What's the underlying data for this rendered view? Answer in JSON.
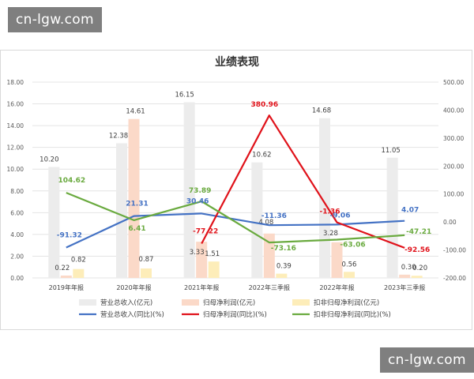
{
  "watermark": {
    "top_left": "cn-lgw.com",
    "bottom_right": "cn-lgw.com"
  },
  "chart_data": {
    "type": "bar",
    "title": "业绩表现",
    "categories": [
      "2019年年报",
      "2020年年报",
      "2021年年报",
      "2022年三季报",
      "2022年年报",
      "2023年三季报"
    ],
    "y_left": {
      "ylim": [
        0,
        18
      ],
      "ticks": [
        "0.00",
        "2.00",
        "4.00",
        "6.00",
        "8.00",
        "10.00",
        "12.00",
        "14.00",
        "16.00",
        "18.00"
      ]
    },
    "y_right": {
      "ylim": [
        -200,
        500
      ],
      "ticks": [
        "-200.00",
        "-100.00",
        "0.00",
        "100.00",
        "200.00",
        "300.00",
        "400.00",
        "500.00"
      ]
    },
    "grid": true,
    "legend_position": "bottom",
    "bar_series": [
      {
        "name": "营业总收入(亿元)",
        "color": "#ececec",
        "values": [
          10.2,
          12.38,
          16.15,
          10.62,
          14.68,
          11.05
        ],
        "labels": [
          "10.20",
          "12.38",
          "16.15",
          "10.62",
          "14.68",
          "11.05"
        ],
        "label_color": "#404040"
      },
      {
        "name": "归母净利润(亿元)",
        "color": "#fbd9c8",
        "values": [
          0.22,
          14.61,
          3.33,
          4.08,
          3.28,
          0.3
        ],
        "labels": [
          "0.22",
          "14.61",
          "3.33",
          "4.08",
          "3.28",
          "0.30"
        ],
        "label_color": "#404040"
      },
      {
        "name": "扣非归母净利润(亿元)",
        "color": "#fdedb9",
        "values": [
          0.82,
          0.87,
          1.51,
          0.39,
          0.56,
          0.2
        ],
        "labels": [
          "0.82",
          "0.87",
          "1.51",
          "0.39",
          "0.56",
          "0.20"
        ],
        "label_color": "#404040"
      }
    ],
    "line_series": [
      {
        "name": "营业总收入(同比)(%)",
        "color": "#4472c4",
        "values": [
          -91.32,
          21.31,
          30.46,
          -11.36,
          -9.06,
          4.07
        ],
        "labels": [
          "-91.32",
          "21.31",
          "30.46",
          "-11.36",
          "-9.06",
          "4.07"
        ]
      },
      {
        "name": "归母净利润(同比)(%)",
        "color": "#e0121a",
        "values": [
          null,
          null,
          -77.22,
          380.96,
          -1.36,
          -92.56
        ],
        "labels": [
          "",
          "",
          "-77.22",
          "380.96",
          "-1.36",
          "-92.56"
        ]
      },
      {
        "name": "扣非归母净利润(同比)(%)",
        "color": "#6aaa3f",
        "values": [
          104.62,
          6.41,
          73.89,
          -73.16,
          -63.06,
          -47.21
        ],
        "labels": [
          "104.62",
          "6.41",
          "73.89",
          "-73.16",
          "-63.06",
          "-47.21"
        ]
      }
    ]
  }
}
